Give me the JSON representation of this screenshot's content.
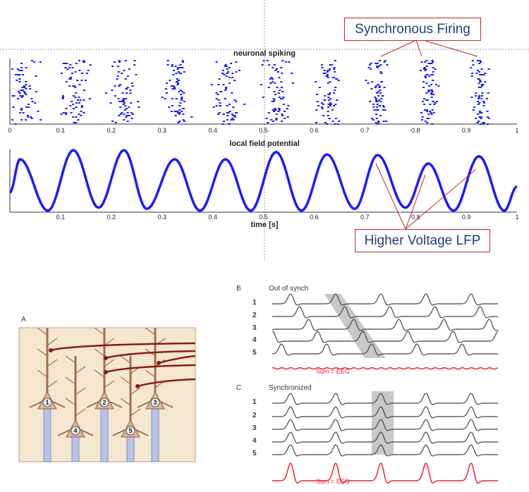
{
  "callouts": {
    "sync": "Synchronous Firing",
    "lfp": "Higher Voltage LFP"
  },
  "colors": {
    "spike": "#1a1aff",
    "lfp": "#1a1aff",
    "callout": "#c0282d",
    "sum": "#ee2233",
    "trace": "#444444",
    "band": "#c8c8c8",
    "panelA_bg": "#f5e6d0"
  },
  "chart_data": [
    {
      "type": "scatter",
      "title": "neuronal spiking",
      "xlabel": "",
      "xlim": [
        0,
        1
      ],
      "xticks": [
        "0",
        "0.1",
        "0.2",
        "0.3",
        "0.4",
        "0.5",
        "0.6",
        "0.7",
        "0.8",
        "0.9",
        "1"
      ],
      "cluster_centers_s": [
        0.02,
        0.125,
        0.225,
        0.325,
        0.425,
        0.525,
        0.625,
        0.725,
        0.825,
        0.925
      ],
      "cluster_spread_s": [
        0.03,
        0.025,
        0.025,
        0.025,
        0.025,
        0.025,
        0.022,
        0.018,
        0.016,
        0.016
      ],
      "spikes_per_cluster": 70
    },
    {
      "type": "line",
      "title": "local field potential",
      "xlabel": "time [s]",
      "xlim": [
        0,
        1
      ],
      "xticks": [
        "0.1",
        "0.2",
        "0.3",
        "0.4",
        "0.5",
        "0.6",
        "0.7",
        "0.8",
        "0.9",
        "1"
      ],
      "extrema_t": [
        0,
        0.02,
        0.075,
        0.125,
        0.175,
        0.225,
        0.27,
        0.325,
        0.375,
        0.425,
        0.475,
        0.525,
        0.575,
        0.625,
        0.68,
        0.725,
        0.78,
        0.825,
        0.875,
        0.925,
        0.975,
        1.0
      ],
      "extrema_v": [
        0.3,
        0.85,
        0.0,
        1.0,
        0.05,
        1.0,
        0.03,
        0.85,
        0.0,
        0.85,
        0.0,
        0.97,
        0.0,
        0.93,
        0.03,
        0.92,
        0.05,
        0.78,
        0.0,
        0.9,
        0.0,
        0.4
      ]
    }
  ],
  "panelA": {
    "label": "A",
    "neurons": [
      "1",
      "2",
      "3",
      "4",
      "5"
    ]
  },
  "panelB": {
    "label": "B",
    "title": "Out of synch",
    "rows": [
      "1",
      "2",
      "3",
      "4",
      "5"
    ],
    "phase_offsets": [
      0,
      0.2,
      0.4,
      0.6,
      -0.2
    ],
    "sum_label": "Sum = EEG"
  },
  "panelC": {
    "label": "C",
    "title": "Synchronized",
    "rows": [
      "1",
      "2",
      "3",
      "4",
      "5"
    ],
    "phase_offsets": [
      0,
      0,
      0,
      0,
      0
    ],
    "sum_label": "Sum = EEG"
  }
}
